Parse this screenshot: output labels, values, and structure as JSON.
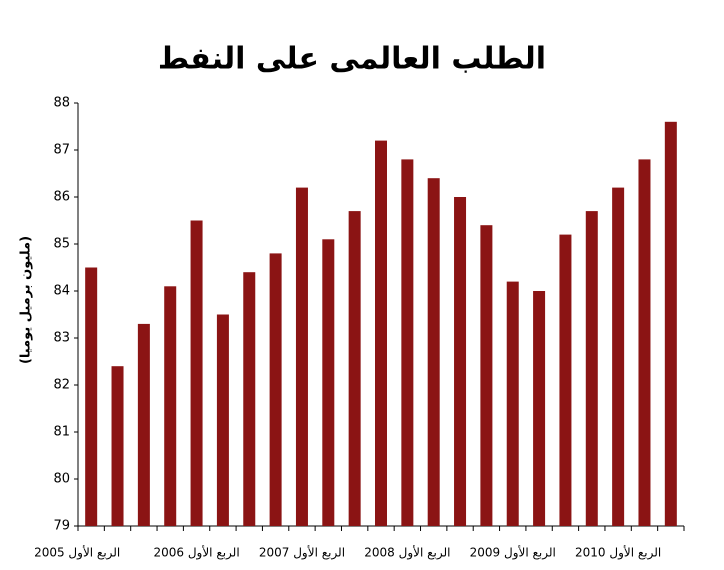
{
  "chart_data": {
    "type": "bar",
    "title": "الطلب العالمى على النفط",
    "y_label": "(مليون برميل يوميا)",
    "categories": [
      "الربع الأول 2005",
      null,
      null,
      null,
      "الربع الأول 2006",
      null,
      null,
      null,
      "الربع الأول 2007",
      null,
      null,
      null,
      "الربع الأول 2008",
      null,
      null,
      null,
      "الربع الأول 2009",
      null,
      null,
      null,
      "الربع الأول 2010",
      null,
      null
    ],
    "values": [
      84.5,
      82.4,
      83.3,
      84.1,
      85.5,
      83.5,
      84.4,
      84.8,
      86.2,
      85.1,
      85.7,
      87.2,
      86.8,
      86.4,
      86.0,
      85.4,
      84.2,
      84.0,
      85.2,
      85.7,
      86.2,
      86.8,
      87.6
    ],
    "color": "#8b1414",
    "ylim": [
      79,
      88
    ],
    "yticks": [
      79,
      80,
      81,
      82,
      83,
      84,
      85,
      86,
      87,
      88
    ],
    "grid": false
  }
}
